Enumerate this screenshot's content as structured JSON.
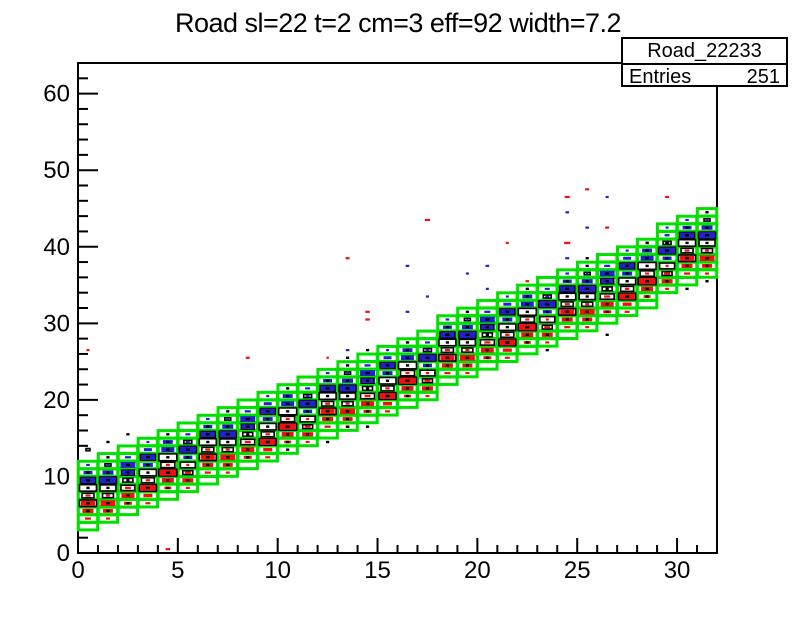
{
  "title": "Road sl=22 t=2 cm=3 eff=92 width=7.2",
  "stats_box": {
    "name": "Road_22233",
    "rows": [
      {
        "label": "Entries",
        "value": "251"
      }
    ]
  },
  "colors": {
    "green": "#00e100",
    "red": "#ee1111",
    "blue": "#2222cc",
    "black": "#000000",
    "white": "#ffffff",
    "axis": "#000000"
  },
  "chart_data": {
    "type": "heatmap",
    "subtype": "box2d_overlay_histogram",
    "description": "ROOT TH2 BOX-style plot. Green hollow boxes mark the road window (9 one-unit cells per x column, rising diagonally). Red, blue, white-hollow and black boxes are overlaid hit histograms; box size is proportional to bin content.",
    "title": "Road sl=22 t=2 cm=3 eff=92 width=7.2",
    "entries": 251,
    "x_axis": {
      "min": 0,
      "max": 32,
      "major_ticks": [
        0,
        5,
        10,
        15,
        20,
        25,
        30
      ],
      "minor_step": 1
    },
    "y_axis": {
      "min": 0,
      "max": 64,
      "major_ticks": [
        0,
        10,
        20,
        30,
        40,
        50,
        60
      ],
      "minor_step": 2
    },
    "bin_size": {
      "x": 1,
      "y": 1
    },
    "legend": {
      "g": "green road-window cell (hollow, thick border)",
      "r": "red filled hit box",
      "b": "blue filled hit box",
      "w": "white box with black border",
      "K": "black hollow box",
      "k": "small black filled box"
    },
    "road_band": {
      "color_key": "green",
      "cells_per_column": 9,
      "cell_fill_fraction": 0.97,
      "columns": [
        [
          0,
          3,
          0
        ],
        [
          1,
          4,
          1
        ],
        [
          2,
          5,
          2
        ],
        [
          3,
          6,
          3
        ],
        [
          4,
          7,
          4
        ],
        [
          5,
          8,
          5
        ],
        [
          6,
          9,
          0
        ],
        [
          7,
          10,
          1
        ],
        [
          8,
          11,
          2
        ],
        [
          9,
          12,
          3
        ],
        [
          10,
          13,
          4
        ],
        [
          11,
          14,
          5
        ],
        [
          12,
          15,
          0
        ],
        [
          13,
          16,
          1
        ],
        [
          14,
          17,
          2
        ],
        [
          15,
          18,
          3
        ],
        [
          16,
          19,
          4
        ],
        [
          17,
          20,
          5
        ],
        [
          18,
          22,
          0
        ],
        [
          19,
          23,
          1
        ],
        [
          20,
          24,
          2
        ],
        [
          21,
          25,
          3
        ],
        [
          22,
          26,
          4
        ],
        [
          23,
          27,
          5
        ],
        [
          24,
          28,
          0
        ],
        [
          25,
          29,
          1
        ],
        [
          26,
          30,
          2
        ],
        [
          27,
          31,
          3
        ],
        [
          28,
          32,
          4
        ],
        [
          29,
          34,
          5
        ],
        [
          30,
          35,
          0
        ],
        [
          31,
          36,
          1
        ]
      ],
      "columns_format": "[x_bin, band_lowest_y_bin, cell_pattern_id]"
    },
    "cell_patterns_format": "pattern = 9 cells from band bottom to top; each cell = list of layers [color_key, size_fraction]",
    "cell_patterns": [
      [
        [],
        [
          [
            "r",
            0.3
          ]
        ],
        [
          [
            "r",
            0.55
          ],
          [
            "k",
            0.15
          ]
        ],
        [
          [
            "K",
            0.85
          ],
          [
            "r",
            0.7
          ],
          [
            "k",
            0.18
          ]
        ],
        [
          [
            "w",
            0.6
          ],
          [
            "r",
            0.25
          ]
        ],
        [
          [
            "w",
            0.85
          ],
          [
            "k",
            0.1
          ]
        ],
        [
          [
            "K",
            0.75
          ],
          [
            "b",
            0.7
          ],
          [
            "k",
            0.2
          ]
        ],
        [
          [
            "b",
            0.45
          ],
          [
            "k",
            0.12
          ]
        ],
        [
          [
            "b",
            0.18
          ]
        ]
      ],
      [
        [
          [
            "r",
            0.2
          ]
        ],
        [
          [
            "r",
            0.5
          ],
          [
            "k",
            0.12
          ]
        ],
        [
          [
            "r",
            0.75
          ],
          [
            "k",
            0.18
          ]
        ],
        [
          [
            "w",
            0.55
          ],
          [
            "r",
            0.2
          ]
        ],
        [
          [
            "w",
            0.8
          ],
          [
            "k",
            0.1
          ]
        ],
        [
          [
            "K",
            0.85
          ],
          [
            "b",
            0.8
          ],
          [
            "k",
            0.2
          ]
        ],
        [
          [
            "b",
            0.55
          ],
          [
            "k",
            0.15
          ]
        ],
        [
          [
            "w",
            0.3
          ],
          [
            "b",
            0.12
          ]
        ],
        [
          [
            "k",
            0.1
          ]
        ]
      ],
      [
        [],
        [
          [
            "r",
            0.4
          ],
          [
            "k",
            0.1
          ]
        ],
        [
          [
            "r",
            0.65
          ],
          [
            "k",
            0.15
          ]
        ],
        [
          [
            "w",
            0.7
          ],
          [
            "r",
            0.3
          ]
        ],
        [
          [
            "w",
            0.5
          ],
          [
            "k",
            0.1
          ]
        ],
        [
          [
            "K",
            0.65
          ],
          [
            "b",
            0.6
          ],
          [
            "k",
            0.16
          ]
        ],
        [
          [
            "b",
            0.75
          ],
          [
            "k",
            0.2
          ]
        ],
        [
          [
            "b",
            0.3
          ]
        ],
        []
      ],
      [
        [
          [
            "r",
            0.25
          ]
        ],
        [
          [
            "r",
            0.45
          ]
        ],
        [
          [
            "K",
            0.85
          ],
          [
            "r",
            0.78
          ],
          [
            "k",
            0.2
          ]
        ],
        [
          [
            "w",
            0.65
          ],
          [
            "r",
            0.22
          ]
        ],
        [
          [
            "w",
            0.85
          ],
          [
            "k",
            0.12
          ]
        ],
        [
          [
            "b",
            0.5
          ],
          [
            "k",
            0.12
          ]
        ],
        [
          [
            "K",
            0.75
          ],
          [
            "b",
            0.7
          ],
          [
            "k",
            0.18
          ]
        ],
        [
          [
            "b",
            0.4
          ]
        ],
        [
          [
            "b",
            0.15
          ]
        ]
      ],
      [
        [],
        [
          [
            "r",
            0.35
          ],
          [
            "k",
            0.1
          ]
        ],
        [
          [
            "r",
            0.6
          ],
          [
            "k",
            0.15
          ]
        ],
        [
          [
            "K",
            0.9
          ],
          [
            "r",
            0.82
          ],
          [
            "k",
            0.2
          ]
        ],
        [
          [
            "w",
            0.7
          ],
          [
            "r",
            0.2
          ]
        ],
        [
          [
            "w",
            0.9
          ],
          [
            "k",
            0.1
          ]
        ],
        [
          [
            "b",
            0.65
          ],
          [
            "k",
            0.18
          ]
        ],
        [
          [
            "b",
            0.5
          ],
          [
            "k",
            0.1
          ]
        ],
        [
          [
            "k",
            0.1
          ]
        ]
      ],
      [
        [
          [
            "r",
            0.2
          ]
        ],
        [
          [
            "r",
            0.55
          ],
          [
            "k",
            0.15
          ]
        ],
        [
          [
            "w",
            0.5
          ],
          [
            "r",
            0.3
          ]
        ],
        [
          [
            "w",
            0.75
          ],
          [
            "r",
            0.15
          ]
        ],
        [
          [
            "b",
            0.45
          ],
          [
            "k",
            0.1
          ]
        ],
        [
          [
            "K",
            0.85
          ],
          [
            "b",
            0.8
          ],
          [
            "k",
            0.2
          ]
        ],
        [
          [
            "w",
            0.4
          ],
          [
            "b",
            0.2
          ]
        ],
        [
          [
            "b",
            0.25
          ]
        ],
        []
      ]
    ],
    "outliers_format": "[x_center, y_center, color_key, size_fraction]",
    "outliers": [
      [
        4.5,
        0.5,
        "r",
        0.22
      ],
      [
        0.5,
        26.5,
        "r",
        0.15
      ],
      [
        8.5,
        25.5,
        "r",
        0.2
      ],
      [
        12.5,
        25.5,
        "r",
        0.12
      ],
      [
        13.5,
        38.5,
        "r",
        0.2
      ],
      [
        14.5,
        31.5,
        "r",
        0.22
      ],
      [
        14.5,
        30.5,
        "r",
        0.22
      ],
      [
        17.5,
        43.5,
        "r",
        0.26
      ],
      [
        21.5,
        40.5,
        "r",
        0.15
      ],
      [
        24.5,
        40.5,
        "r",
        0.3
      ],
      [
        24.5,
        46.5,
        "r",
        0.25
      ],
      [
        25.5,
        47.5,
        "r",
        0.2
      ],
      [
        26.5,
        42.5,
        "r",
        0.2
      ],
      [
        29.5,
        46.5,
        "r",
        0.2
      ],
      [
        22.5,
        35.5,
        "r",
        0.18
      ],
      [
        13.5,
        26.5,
        "b",
        0.18
      ],
      [
        16.5,
        31.5,
        "b",
        0.18
      ],
      [
        16.5,
        37.5,
        "b",
        0.18
      ],
      [
        17.5,
        33.5,
        "b",
        0.15
      ],
      [
        19.5,
        36.5,
        "b",
        0.15
      ],
      [
        20.5,
        37.5,
        "b",
        0.18
      ],
      [
        20.5,
        34.5,
        "b",
        0.15
      ],
      [
        24.5,
        44.5,
        "b",
        0.18
      ],
      [
        24.5,
        38.5,
        "b",
        0.2
      ],
      [
        25.5,
        42.5,
        "b",
        0.18
      ],
      [
        26.5,
        46.5,
        "b",
        0.15
      ],
      [
        29.5,
        42.5,
        "b",
        0.15
      ],
      [
        29.5,
        41.5,
        "b",
        0.18
      ],
      [
        1.5,
        14.5,
        "k",
        0.1
      ],
      [
        2.5,
        15.5,
        "k",
        0.09
      ],
      [
        10.5,
        13.5,
        "k",
        0.1
      ],
      [
        12.5,
        14.5,
        "k",
        0.1
      ],
      [
        13.5,
        16.5,
        "k",
        0.12
      ],
      [
        14.5,
        16.5,
        "k",
        0.09
      ],
      [
        14.5,
        26.5,
        "k",
        0.1
      ],
      [
        13.5,
        25.5,
        "k",
        0.1
      ],
      [
        23.5,
        26.5,
        "k",
        0.1
      ],
      [
        26.5,
        28.5,
        "k",
        0.1
      ],
      [
        25.5,
        38.5,
        "k",
        0.12
      ],
      [
        28.5,
        40.5,
        "k",
        0.1
      ],
      [
        29.5,
        40.5,
        "k",
        0.1
      ],
      [
        30.5,
        34.5,
        "k",
        0.1
      ],
      [
        31.5,
        35.5,
        "k",
        0.12
      ],
      [
        0.5,
        13.5,
        "w",
        0.2
      ]
    ]
  }
}
